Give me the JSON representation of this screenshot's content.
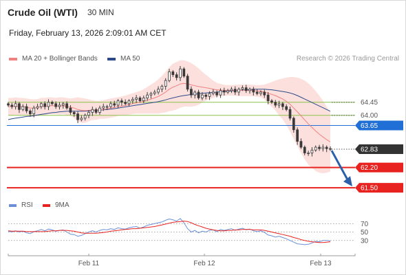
{
  "header": {
    "instrument": "Crude Oil (WTI)",
    "timeframe": "30 MIN",
    "datetime": "Friday, February 13, 2026 2:09:01 AM CET"
  },
  "legend": {
    "ma20_label": "MA 20 + Bollinger Bands",
    "ma50_label": "MA 50",
    "credit": "Research © 2026 Trading Central",
    "rsi_label": "RSI",
    "ma9_label": "9MA"
  },
  "colors": {
    "ma20": "#f08080",
    "ma50": "#2c4a8a",
    "bollinger_fill": "#fbd5d2",
    "candle": "#3a3a3a",
    "green_levels": "#8bc34a",
    "blue_level": "#1f6fd6",
    "red_levels": "#e8231f",
    "arrow": "#2c5fa8",
    "rsi": "#6a8fd8",
    "ma9": "#e8231f"
  },
  "chart_data": [
    {
      "type": "line",
      "title": "Crude Oil (WTI)",
      "x_ticks": [
        "Feb 11",
        "Feb 12",
        "Feb 13"
      ],
      "ylim": [
        61.1,
        65.7
      ],
      "levels": [
        {
          "value": 64.45,
          "label": "64.45",
          "kind": "resistance",
          "color": "green"
        },
        {
          "value": 64.0,
          "label": "64.00",
          "kind": "resistance",
          "color": "green"
        },
        {
          "value": 63.65,
          "label": "63.65",
          "kind": "pivot",
          "color": "blue"
        },
        {
          "value": 62.83,
          "label": "62.83",
          "kind": "last",
          "color": "dark"
        },
        {
          "value": 62.2,
          "label": "62.20",
          "kind": "target",
          "color": "red"
        },
        {
          "value": 61.5,
          "label": "61.50",
          "kind": "target",
          "color": "red"
        }
      ],
      "close": [
        64.35,
        64.3,
        64.4,
        64.2,
        64.3,
        64.15,
        64.05,
        64.25,
        64.3,
        64.4,
        64.3,
        64.45,
        64.4,
        64.3,
        64.35,
        64.4,
        64.25,
        64.1,
        64.05,
        63.85,
        63.9,
        64.0,
        64.1,
        64.2,
        64.1,
        64.25,
        64.3,
        64.3,
        64.4,
        64.35,
        64.5,
        64.45,
        64.4,
        64.5,
        64.55,
        64.6,
        64.5,
        64.6,
        64.7,
        64.75,
        64.8,
        64.9,
        65.0,
        65.2,
        65.5,
        65.4,
        65.3,
        65.6,
        65.35,
        64.9,
        64.7,
        64.8,
        64.6,
        64.7,
        64.65,
        64.75,
        64.8,
        64.7,
        64.85,
        64.8,
        64.85,
        64.9,
        64.8,
        64.9,
        64.95,
        64.85,
        64.9,
        64.8,
        64.75,
        64.8,
        64.7,
        64.5,
        64.45,
        64.35,
        64.4,
        64.3,
        64.2,
        63.9,
        63.5,
        63.1,
        62.9,
        62.7,
        62.7,
        62.8,
        62.9,
        62.85,
        62.9,
        62.85,
        62.83
      ],
      "ma20": [
        64.3,
        64.3,
        64.32,
        64.3,
        64.3,
        64.28,
        64.25,
        64.25,
        64.27,
        64.3,
        64.3,
        64.33,
        64.33,
        64.32,
        64.32,
        64.33,
        64.3,
        64.28,
        64.25,
        64.2,
        64.17,
        64.16,
        64.17,
        64.18,
        64.17,
        64.19,
        64.2,
        64.22,
        64.25,
        64.27,
        64.3,
        64.32,
        64.34,
        64.37,
        64.4,
        64.43,
        64.45,
        64.48,
        64.52,
        64.56,
        64.6,
        64.65,
        64.72,
        64.8,
        64.9,
        64.97,
        65.02,
        65.08,
        65.1,
        65.08,
        65.05,
        65.02,
        64.99,
        64.97,
        64.95,
        64.93,
        64.9,
        64.88,
        64.87,
        64.86,
        64.86,
        64.86,
        64.86,
        64.86,
        64.86,
        64.86,
        64.86,
        64.85,
        64.84,
        64.83,
        64.8,
        64.76,
        64.72,
        64.68,
        64.62,
        64.56,
        64.48,
        64.38,
        64.25,
        64.12,
        63.98,
        63.84,
        63.7,
        63.58,
        63.46,
        63.35,
        63.25,
        63.16,
        63.08
      ],
      "bb_upper": [
        64.6,
        64.6,
        64.62,
        64.6,
        64.6,
        64.58,
        64.56,
        64.55,
        64.56,
        64.6,
        64.6,
        64.62,
        64.62,
        64.6,
        64.62,
        64.62,
        64.6,
        64.58,
        64.6,
        64.62,
        64.6,
        64.58,
        64.55,
        64.52,
        64.5,
        64.5,
        64.52,
        64.55,
        64.58,
        64.6,
        64.62,
        64.65,
        64.68,
        64.72,
        64.76,
        64.8,
        64.84,
        64.9,
        64.98,
        65.06,
        65.14,
        65.24,
        65.36,
        65.5,
        65.66,
        65.78,
        65.84,
        65.9,
        65.9,
        65.86,
        65.8,
        65.72,
        65.62,
        65.5,
        65.4,
        65.3,
        65.2,
        65.12,
        65.08,
        65.05,
        65.04,
        65.04,
        65.05,
        65.06,
        65.06,
        65.06,
        65.06,
        65.05,
        65.04,
        65.04,
        65.06,
        65.1,
        65.15,
        65.2,
        65.24,
        65.27,
        65.3,
        65.32,
        65.32,
        65.3,
        65.26,
        65.2,
        65.1,
        64.98,
        64.84,
        64.68,
        64.5,
        64.3,
        64.1
      ],
      "bb_lower": [
        64.0,
        64.0,
        64.02,
        64.0,
        64.0,
        63.98,
        63.94,
        63.95,
        63.98,
        64.0,
        64.0,
        64.04,
        64.04,
        64.04,
        64.02,
        64.04,
        64.0,
        63.98,
        63.9,
        63.78,
        63.74,
        63.74,
        63.79,
        63.84,
        63.84,
        63.88,
        63.88,
        63.89,
        63.92,
        63.94,
        63.98,
        63.99,
        64.0,
        64.02,
        64.04,
        64.06,
        64.06,
        64.06,
        64.06,
        64.06,
        64.06,
        64.06,
        64.08,
        64.1,
        64.14,
        64.16,
        64.2,
        64.26,
        64.3,
        64.3,
        64.3,
        64.32,
        64.36,
        64.44,
        64.5,
        64.56,
        64.6,
        64.64,
        64.66,
        64.67,
        64.68,
        64.68,
        64.67,
        64.66,
        64.66,
        64.66,
        64.66,
        64.65,
        64.64,
        64.62,
        64.54,
        64.42,
        64.29,
        64.16,
        64.0,
        63.85,
        63.66,
        63.44,
        63.18,
        62.94,
        62.7,
        62.48,
        62.3,
        62.18,
        62.08,
        62.02,
        62.0,
        62.02,
        62.06
      ],
      "ma50": [
        63.85,
        63.88,
        63.9,
        63.92,
        63.94,
        63.96,
        63.97,
        63.99,
        64.01,
        64.03,
        64.05,
        64.07,
        64.09,
        64.1,
        64.12,
        64.13,
        64.14,
        64.14,
        64.14,
        64.14,
        64.14,
        64.14,
        64.15,
        64.16,
        64.17,
        64.18,
        64.19,
        64.2,
        64.21,
        64.23,
        64.25,
        64.27,
        64.29,
        64.31,
        64.33,
        64.35,
        64.37,
        64.39,
        64.41,
        64.43,
        64.45,
        64.47,
        64.5,
        64.53,
        64.57,
        64.6,
        64.63,
        64.66,
        64.68,
        64.7,
        64.72,
        64.73,
        64.74,
        64.76,
        64.77,
        64.78,
        64.79,
        64.8,
        64.81,
        64.82,
        64.83,
        64.84,
        64.85,
        64.86,
        64.87,
        64.88,
        64.89,
        64.9,
        64.9,
        64.9,
        64.9,
        64.89,
        64.88,
        64.86,
        64.84,
        64.82,
        64.8,
        64.77,
        64.73,
        64.68,
        64.62,
        64.56,
        64.5,
        64.44,
        64.38,
        64.32,
        64.26,
        64.2,
        64.14
      ]
    },
    {
      "type": "line",
      "ylim": [
        10,
        90
      ],
      "y_ticks": [
        70,
        50,
        30
      ],
      "series": [
        {
          "name": "RSI",
          "values": [
            52,
            50,
            53,
            50,
            52,
            48,
            46,
            51,
            53,
            56,
            53,
            57,
            55,
            52,
            54,
            55,
            50,
            45,
            44,
            40,
            42,
            46,
            50,
            53,
            50,
            54,
            56,
            55,
            58,
            56,
            60,
            58,
            57,
            60,
            62,
            63,
            59,
            62,
            66,
            68,
            70,
            72,
            74,
            78,
            81,
            79,
            76,
            82,
            72,
            58,
            50,
            54,
            48,
            52,
            50,
            54,
            55,
            51,
            56,
            54,
            56,
            58,
            54,
            57,
            59,
            55,
            57,
            53,
            51,
            53,
            49,
            43,
            41,
            38,
            40,
            37,
            34,
            30,
            26,
            22,
            21,
            20,
            21,
            24,
            28,
            27,
            30,
            30,
            29
          ]
        },
        {
          "name": "9MA",
          "values": [
            53,
            52,
            52,
            52,
            52,
            51,
            51,
            51,
            51,
            51,
            51,
            52,
            53,
            53,
            54,
            54,
            54,
            53,
            52,
            50,
            48,
            47,
            47,
            47,
            47,
            48,
            49,
            50,
            52,
            53,
            54,
            55,
            56,
            57,
            58,
            58,
            59,
            60,
            61,
            62,
            63,
            65,
            67,
            69,
            71,
            73,
            74,
            75,
            76,
            75,
            72,
            68,
            65,
            62,
            59,
            57,
            55,
            54,
            53,
            53,
            54,
            54,
            55,
            55,
            56,
            56,
            56,
            55,
            55,
            55,
            54,
            52,
            50,
            48,
            46,
            44,
            42,
            40,
            37,
            35,
            32,
            30,
            28,
            27,
            26,
            25,
            25,
            26,
            27
          ]
        }
      ]
    }
  ]
}
